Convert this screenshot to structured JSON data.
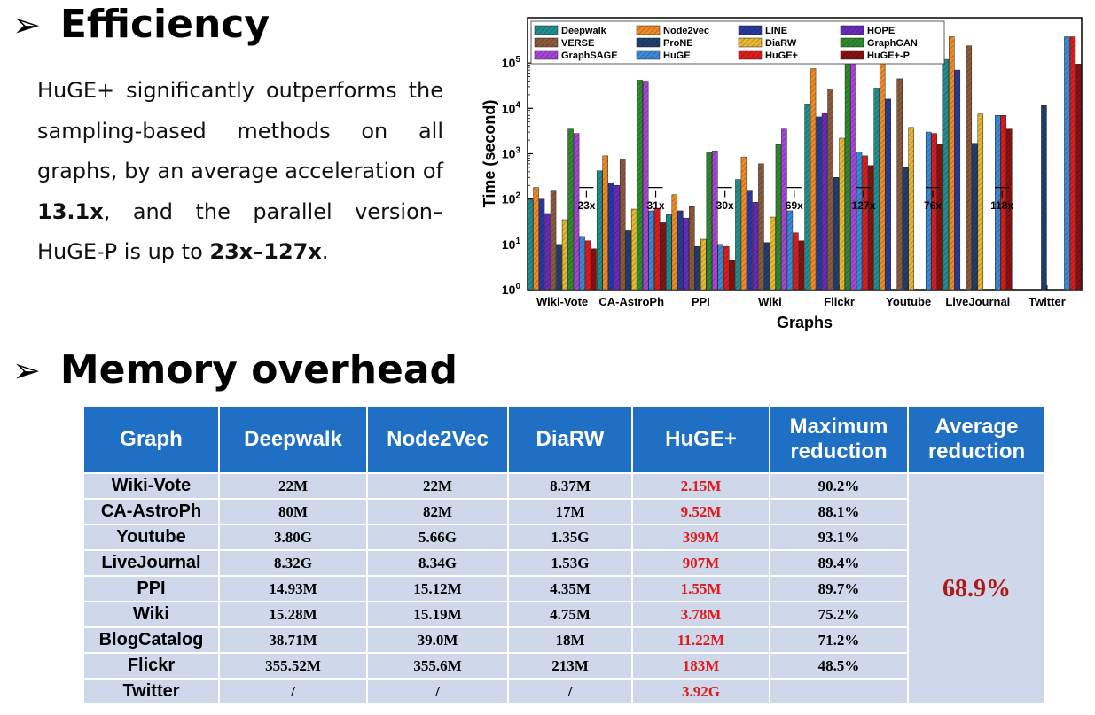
{
  "efficiency": {
    "bullet": "➢",
    "title": "Efficiency",
    "para_1": "HuGE+ significantly outperforms the sampling-based methods on all graphs, by an average acceleration of ",
    "para_b1": "13.1x",
    "para_2": ", and the parallel version–HuGE-P is up to ",
    "para_b2": "23x–127x",
    "para_3": "."
  },
  "memory": {
    "bullet": "➢",
    "title": "Memory overhead",
    "headers": [
      "Graph",
      "Deepwalk",
      "Node2Vec",
      "DiaRW",
      "HuGE+",
      "Maximum reduction",
      "Average reduction"
    ],
    "rows": [
      [
        "Wiki-Vote",
        "22M",
        "22M",
        "8.37M",
        "2.15M",
        "90.2%"
      ],
      [
        "CA-AstroPh",
        "80M",
        "82M",
        "17M",
        "9.52M",
        "88.1%"
      ],
      [
        "Youtube",
        "3.80G",
        "5.66G",
        "1.35G",
        "399M",
        "93.1%"
      ],
      [
        "LiveJournal",
        "8.32G",
        "8.34G",
        "1.53G",
        "907M",
        "89.4%"
      ],
      [
        "PPI",
        "14.93M",
        "15.12M",
        "4.35M",
        "1.55M",
        "89.7%"
      ],
      [
        "Wiki",
        "15.28M",
        "15.19M",
        "4.75M",
        "3.78M",
        "75.2%"
      ],
      [
        "BlogCatalog",
        "38.71M",
        "39.0M",
        "18M",
        "11.22M",
        "71.2%"
      ],
      [
        "Flickr",
        "355.52M",
        "355.6M",
        "213M",
        "183M",
        "48.5%"
      ],
      [
        "Twitter",
        "/",
        "/",
        "/",
        "3.92G",
        ""
      ]
    ],
    "average_reduction": "68.9%"
  },
  "chart_data": {
    "type": "bar",
    "xlabel": "Graphs",
    "ylabel": "Time (second)",
    "yscale": "log",
    "ylim": [
      1,
      1000000
    ],
    "yticks": [
      "10^0",
      "10^1",
      "10^2",
      "10^3",
      "10^4",
      "10^5"
    ],
    "legend_position": "top-left",
    "categories": [
      "Wiki-Vote",
      "CA-AstroPh",
      "PPI",
      "Wiki",
      "Flickr",
      "Youtube",
      "LiveJournal",
      "Twitter"
    ],
    "series": [
      {
        "name": "Deepwalk",
        "color": "#1f8f8f",
        "values": [
          95,
          420,
          45,
          270,
          12500,
          28000,
          120000,
          null
        ]
      },
      {
        "name": "Node2vec",
        "color": "#f08a24",
        "values": [
          180,
          900,
          125,
          850,
          75000,
          120000,
          380000,
          null
        ]
      },
      {
        "name": "LINE",
        "color": "#2a3a9c",
        "values": [
          100,
          230,
          55,
          150,
          6500,
          16000,
          70000,
          null
        ]
      },
      {
        "name": "HOPE",
        "color": "#6a2ac0",
        "values": [
          48,
          200,
          38,
          85,
          8000,
          null,
          null,
          null
        ]
      },
      {
        "name": "VERSE",
        "color": "#8b5a3c",
        "values": [
          150,
          760,
          68,
          600,
          27000,
          45000,
          240000,
          null
        ]
      },
      {
        "name": "ProNE",
        "color": "#1f3f6f",
        "values": [
          10,
          20,
          9,
          11,
          300,
          500,
          1700,
          11500
        ]
      },
      {
        "name": "DiaRW",
        "color": "#e8b830",
        "values": [
          35,
          60,
          13,
          40,
          2200,
          3800,
          7500,
          null
        ]
      },
      {
        "name": "GraphGAN",
        "color": "#2e8b2e",
        "values": [
          3500,
          42000,
          1100,
          1600,
          320000,
          null,
          null,
          null
        ]
      },
      {
        "name": "GraphSAGE",
        "color": "#a845d8",
        "values": [
          2800,
          40000,
          1150,
          3500,
          380000,
          null,
          null,
          null
        ]
      },
      {
        "name": "HuGE",
        "color": "#3a8ad8",
        "values": [
          15,
          55,
          10,
          55,
          1100,
          3000,
          7000,
          380000
        ]
      },
      {
        "name": "HuGE+",
        "color": "#e01b1b",
        "values": [
          12,
          62,
          9,
          18,
          900,
          2800,
          7000,
          380000
        ]
      },
      {
        "name": "HuGE+-P",
        "color": "#8b1010",
        "values": [
          8,
          30,
          4.5,
          12,
          550,
          1600,
          3500,
          95000
        ]
      }
    ],
    "annotations": [
      {
        "text": "23x",
        "category": "Wiki-Vote"
      },
      {
        "text": "31x",
        "category": "CA-AstroPh"
      },
      {
        "text": "30x",
        "category": "PPI"
      },
      {
        "text": "69x",
        "category": "Wiki"
      },
      {
        "text": "127x",
        "category": "Flickr"
      },
      {
        "text": "76x",
        "category": "Youtube"
      },
      {
        "text": "118x",
        "category": "LiveJournal"
      }
    ]
  }
}
